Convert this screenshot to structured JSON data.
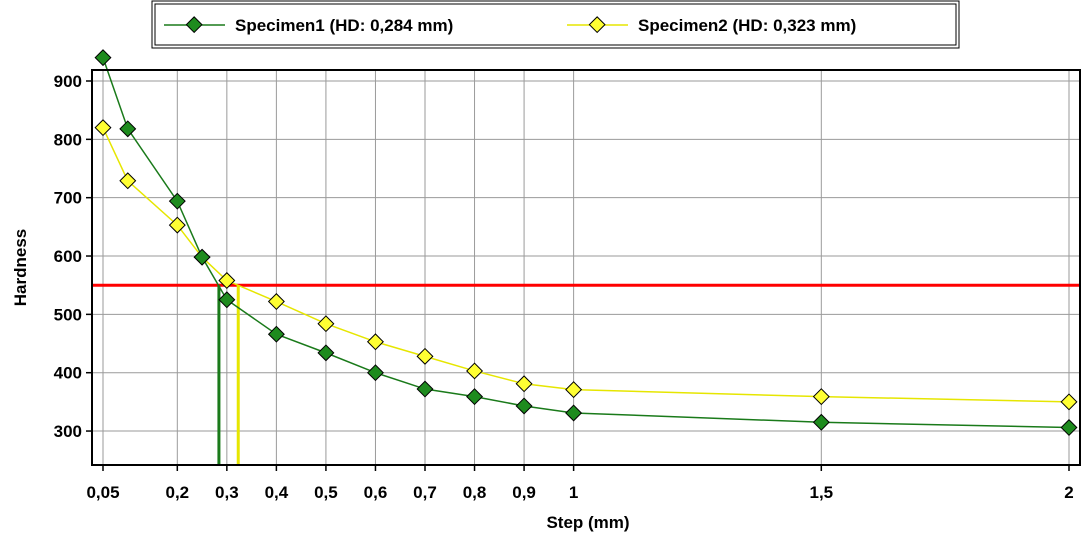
{
  "chart_data": {
    "type": "line",
    "xlabel": "Step (mm)",
    "ylabel": "Hardness",
    "xlim": [
      0.05,
      2
    ],
    "ylim": [
      290,
      960
    ],
    "x_ticks": [
      0.05,
      0.2,
      0.3,
      0.4,
      0.5,
      0.6,
      0.7,
      0.8,
      0.9,
      1,
      1.5,
      2
    ],
    "x_tick_labels": [
      "0,05",
      "0,2",
      "0,3",
      "0,4",
      "0,5",
      "0,6",
      "0,7",
      "0,8",
      "0,9",
      "1",
      "1,5",
      "2"
    ],
    "y_ticks": [
      300,
      400,
      500,
      600,
      700,
      800,
      900
    ],
    "y_tick_labels": [
      "300",
      "400",
      "500",
      "600",
      "700",
      "800",
      "900"
    ],
    "grid": true,
    "legend_position": "top-center",
    "series": [
      {
        "name": "Specimen1 (HD: 0,284 mm)",
        "color": "#1a7a1a",
        "marker_fill": "#1e8b1e",
        "x": [
          0.05,
          0.1,
          0.2,
          0.25,
          0.3,
          0.4,
          0.5,
          0.6,
          0.7,
          0.8,
          0.9,
          1,
          1.5,
          2
        ],
        "y": [
          940,
          818,
          694,
          598,
          525,
          466,
          434,
          400,
          372,
          359,
          343,
          331,
          315,
          306
        ]
      },
      {
        "name": "Specimen2 (HD: 0,323 mm)",
        "color": "#e6e600",
        "marker_fill": "#ffff33",
        "x": [
          0.05,
          0.1,
          0.2,
          0.25,
          0.3,
          0.4,
          0.5,
          0.6,
          0.7,
          0.8,
          0.9,
          1,
          1.5,
          2
        ],
        "y": [
          820,
          729,
          653,
          598,
          558,
          522,
          484,
          453,
          428,
          403,
          381,
          371,
          359,
          350
        ]
      }
    ],
    "threshold": {
      "y": 550,
      "color": "#ff0000"
    },
    "hd_markers": [
      {
        "x": 0.284,
        "color": "#1a7a1a"
      },
      {
        "x": 0.323,
        "color": "#e6e600"
      }
    ]
  }
}
